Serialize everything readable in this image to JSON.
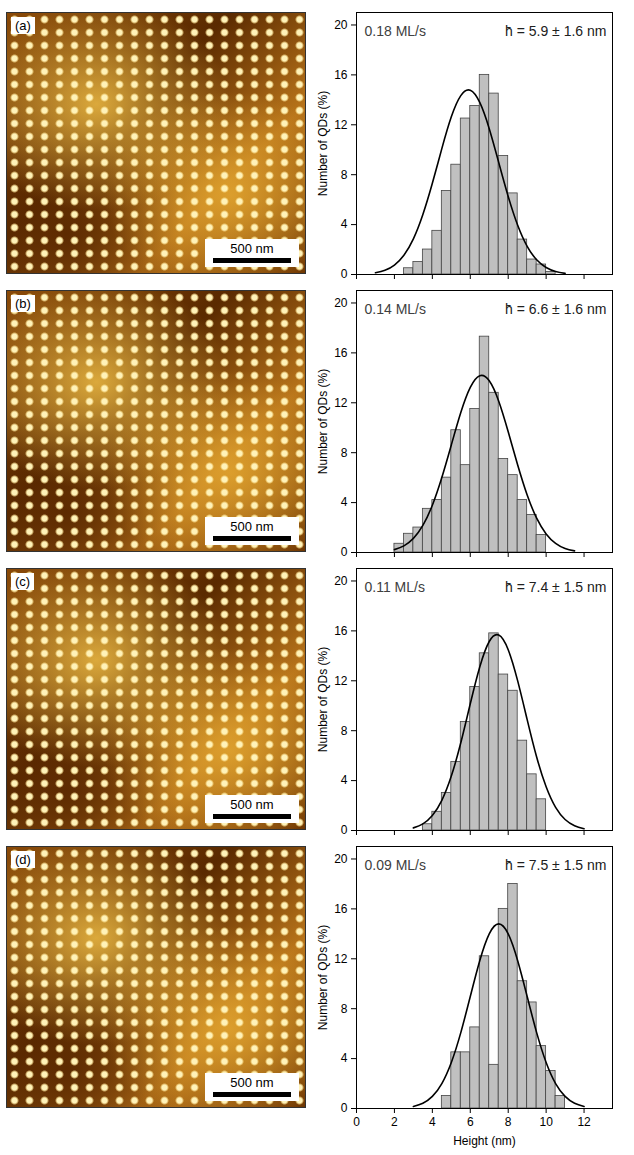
{
  "chart_data": [
    {
      "type": "histogram",
      "image": {
        "label": "(a)",
        "scale_bar": "500 nm"
      },
      "annotations": [
        "0.18 ML/s",
        "h̄ = 5.9 ± 1.6 nm"
      ],
      "ylabel": "Number of QDs (%)",
      "bins": [
        2.5,
        3.0,
        3.5,
        4.0,
        4.5,
        5.0,
        5.5,
        6.0,
        6.5,
        7.0,
        7.5,
        8.0,
        8.5,
        9.0,
        9.5,
        10.0,
        10.5
      ],
      "counts": [
        0.5,
        1.0,
        2.0,
        3.5,
        6.7,
        8.8,
        12.5,
        13.5,
        16.0,
        14.5,
        9.5,
        6.5,
        2.8,
        1.2,
        0.8,
        0.2
      ],
      "color": "#c0c0c0",
      "fit": {
        "x": [
          1,
          1.5,
          2,
          2.5,
          3,
          3.5,
          4,
          4.5,
          5,
          5.5,
          6,
          6.5,
          7,
          7.5,
          8,
          8.5,
          9,
          9.5,
          10,
          10.5,
          11
        ],
        "y": [
          0.14,
          0.34,
          0.76,
          1.55,
          2.86,
          4.81,
          7.31,
          10.09,
          12.64,
          14.34,
          14.77,
          13.79,
          11.69,
          8.98,
          6.26,
          3.95,
          2.26,
          1.18,
          0.56,
          0.24,
          0.09
        ]
      },
      "xlim": [
        0,
        13.5
      ],
      "xticks": [
        0,
        2,
        4,
        6,
        8,
        10,
        12
      ],
      "ylim": [
        0,
        21
      ],
      "yticks": [
        0,
        4,
        8,
        12,
        16,
        20
      ],
      "tick_labels": "y"
    },
    {
      "type": "histogram",
      "image": {
        "label": "(b)",
        "scale_bar": "500 nm"
      },
      "annotations": [
        "0.14 ML/s",
        "h̄ = 6.6 ± 1.6 nm"
      ],
      "ylabel": "Number of QDs (%)",
      "bins": [
        2.0,
        2.5,
        3.0,
        3.5,
        4.0,
        4.5,
        5.0,
        5.5,
        6.0,
        6.5,
        7.0,
        7.5,
        8.0,
        8.5,
        9.0,
        9.5,
        10.0
      ],
      "counts": [
        0.7,
        1.5,
        2.0,
        3.5,
        4.2,
        6.0,
        9.8,
        7.0,
        11.5,
        17.3,
        12.8,
        7.5,
        6.2,
        4.2,
        3.0,
        1.4
      ],
      "color": "#c0c0c0",
      "fit": {
        "x": [
          2,
          2.5,
          3,
          3.5,
          4,
          4.5,
          5,
          5.5,
          6,
          6.5,
          7,
          7.5,
          8,
          8.5,
          9,
          9.5,
          10,
          10.5,
          11,
          11.5
        ],
        "y": [
          0.23,
          0.53,
          1.13,
          2.17,
          3.79,
          6.01,
          8.62,
          11.22,
          13.23,
          14.17,
          13.76,
          12.13,
          9.68,
          7.01,
          4.61,
          2.75,
          1.49,
          0.73,
          0.32,
          0.13
        ]
      },
      "xlim": [
        0,
        13.5
      ],
      "xticks": [
        0,
        2,
        4,
        6,
        8,
        10,
        12
      ],
      "ylim": [
        0,
        21
      ],
      "yticks": [
        0,
        4,
        8,
        12,
        16,
        20
      ],
      "tick_labels": "y"
    },
    {
      "type": "histogram",
      "image": {
        "label": "(c)",
        "scale_bar": "500 nm"
      },
      "annotations": [
        "0.11 ML/s",
        "h̄ = 7.4 ± 1.5 nm"
      ],
      "ylabel": "Number of QDs (%)",
      "bins": [
        3.5,
        4.0,
        4.5,
        5.0,
        5.5,
        6.0,
        6.5,
        7.0,
        7.5,
        8.0,
        8.5,
        9.0,
        9.5,
        10.0
      ],
      "counts": [
        0.5,
        1.5,
        3.0,
        5.5,
        8.7,
        11.5,
        14.2,
        15.8,
        12.5,
        11.2,
        7.2,
        4.5,
        2.5
      ],
      "color": "#c0c0c0",
      "fit": {
        "x": [
          3,
          3.5,
          4,
          4.5,
          5,
          5.5,
          6,
          6.5,
          7,
          7.5,
          8,
          8.5,
          9,
          9.5,
          10,
          10.5,
          11,
          11.5,
          12
        ],
        "y": [
          0.21,
          0.53,
          1.2,
          2.42,
          4.36,
          7.03,
          10.16,
          13.11,
          15.15,
          15.67,
          14.49,
          11.99,
          8.89,
          5.89,
          3.5,
          1.85,
          0.88,
          0.38,
          0.14
        ]
      },
      "xlim": [
        0,
        13.5
      ],
      "xticks": [
        0,
        2,
        4,
        6,
        8,
        10,
        12
      ],
      "ylim": [
        0,
        21
      ],
      "yticks": [
        0,
        4,
        8,
        12,
        16,
        20
      ],
      "tick_labels": "y"
    },
    {
      "type": "histogram",
      "image": {
        "label": "(d)",
        "scale_bar": "500 nm"
      },
      "annotations": [
        "0.09 ML/s",
        "h̄ = 7.5 ± 1.5 nm"
      ],
      "ylabel": "Number of QDs (%)",
      "xlabel": "Height (nm)",
      "bins": [
        4.5,
        5.0,
        5.5,
        6.0,
        6.5,
        7.0,
        7.5,
        8.0,
        8.5,
        9.0,
        9.5,
        10.0,
        10.5,
        11.0
      ],
      "counts": [
        1.0,
        4.5,
        4.5,
        6.5,
        12.2,
        3.5,
        16.0,
        18.0,
        10.2,
        8.5,
        5.0,
        3.0,
        1.0
      ],
      "color": "#c0c0c0",
      "fit": {
        "x": [
          3,
          3.5,
          4,
          4.5,
          5,
          5.5,
          6,
          6.5,
          7,
          7.5,
          8,
          8.5,
          9,
          9.5,
          10,
          10.5,
          11,
          11.5,
          12
        ],
        "y": [
          0.16,
          0.42,
          0.97,
          2.0,
          3.69,
          6.08,
          8.98,
          11.85,
          14.0,
          14.8,
          14.0,
          11.85,
          8.98,
          6.08,
          3.69,
          2.0,
          0.97,
          0.42,
          0.16
        ]
      },
      "xlim": [
        0,
        13.5
      ],
      "xticks": [
        0,
        2,
        4,
        6,
        8,
        10,
        12
      ],
      "ylim": [
        0,
        21
      ],
      "yticks": [
        0,
        4,
        8,
        12,
        16,
        20
      ]
    }
  ]
}
